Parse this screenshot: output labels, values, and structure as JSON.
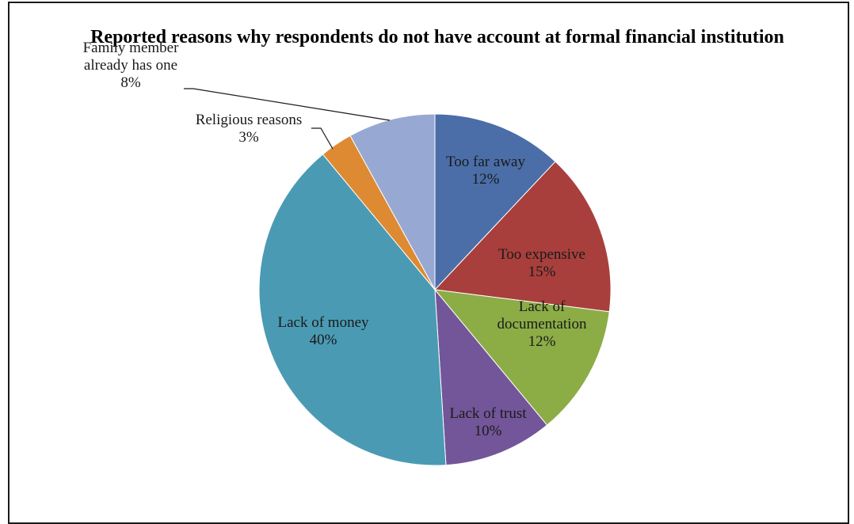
{
  "chart_data": {
    "type": "pie",
    "title": "Reported reasons why respondents do not have account at formal financial institution",
    "slices": [
      {
        "label_lines": [
          "Too far away"
        ],
        "value": 12,
        "value_label": "12%",
        "color": "#4b6ea8"
      },
      {
        "label_lines": [
          "Too expensive"
        ],
        "value": 15,
        "value_label": "15%",
        "color": "#a83f3c"
      },
      {
        "label_lines": [
          "Lack of",
          "documentation"
        ],
        "value": 12,
        "value_label": "12%",
        "color": "#8cac46"
      },
      {
        "label_lines": [
          "Lack of trust"
        ],
        "value": 10,
        "value_label": "10%",
        "color": "#725699"
      },
      {
        "label_lines": [
          "Lack of money"
        ],
        "value": 40,
        "value_label": "40%",
        "color": "#4b9ab3"
      },
      {
        "label_lines": [
          "Religious reasons"
        ],
        "value": 3,
        "value_label": "3%",
        "color": "#dd8a33"
      },
      {
        "label_lines": [
          "Family member",
          "already has one"
        ],
        "value": 8,
        "value_label": "8%",
        "color": "#97a9d3"
      }
    ],
    "start_angle": "12 o'clock",
    "direction": "clockwise",
    "legend": "none"
  }
}
